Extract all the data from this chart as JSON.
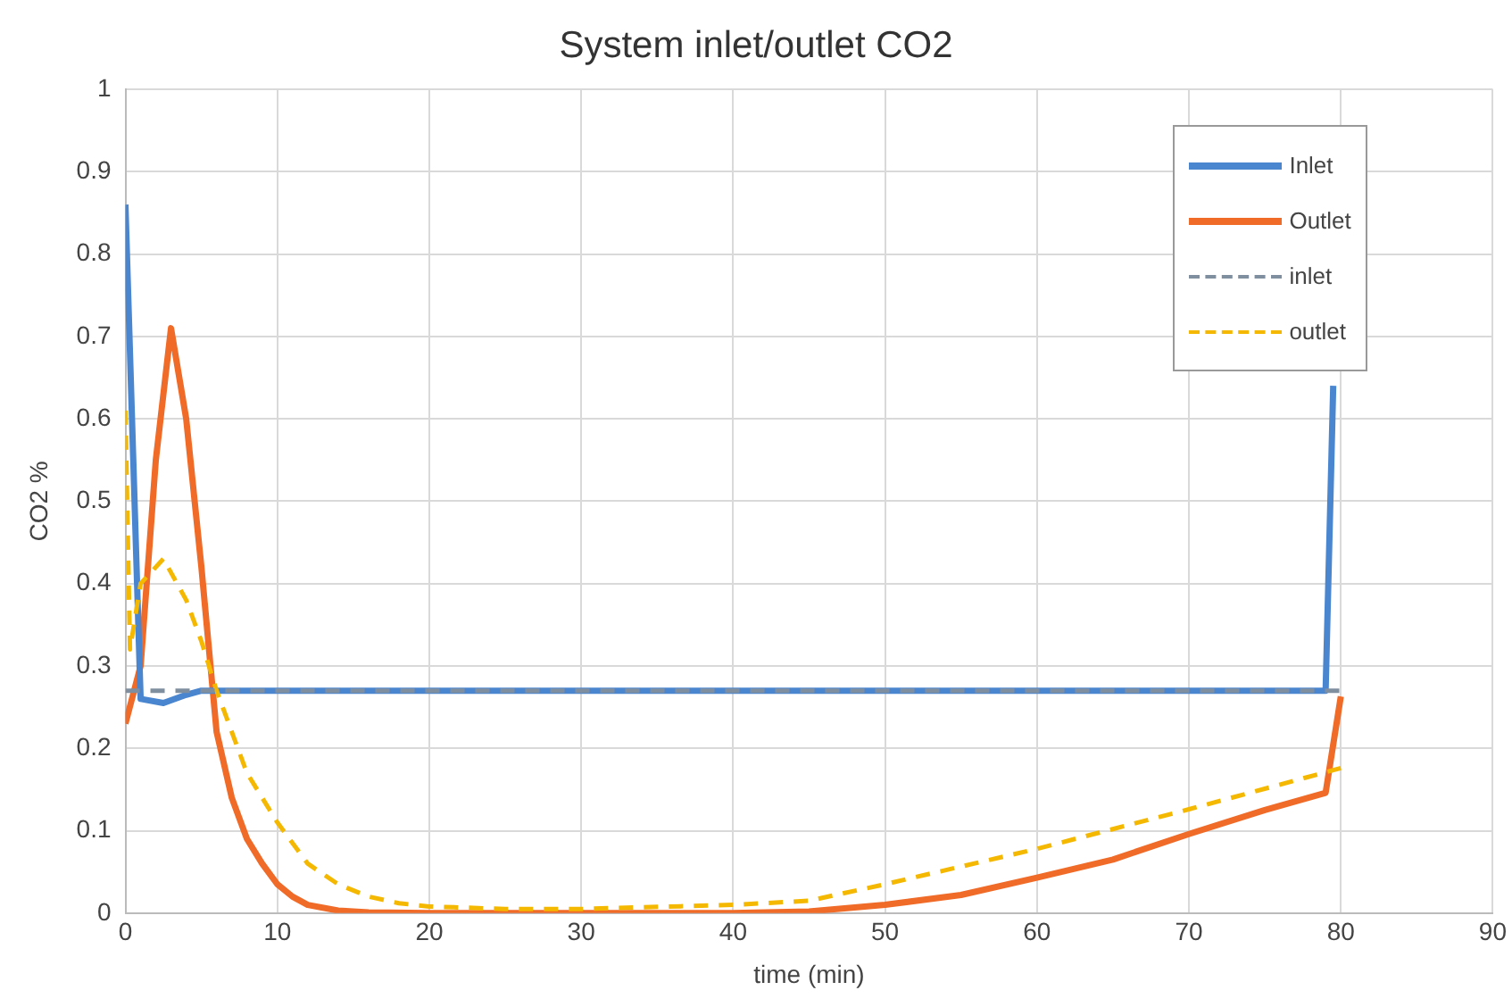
{
  "chart_data": {
    "type": "line",
    "title": "System inlet/outlet CO2",
    "xlabel": "time (min)",
    "ylabel": "CO2 %",
    "xlim": [
      0,
      90
    ],
    "xticks": [
      0,
      10,
      20,
      30,
      40,
      50,
      60,
      70,
      80,
      90
    ],
    "ylim": [
      0,
      1
    ],
    "yticks": [
      0,
      0.1,
      0.2,
      0.3,
      0.4,
      0.5,
      0.6,
      0.7,
      0.8,
      0.9,
      1
    ],
    "grid": true,
    "legend": "top right",
    "marker": "none",
    "series": [
      {
        "name": "Inlet",
        "color": "#4a86d0",
        "line_style": "solid",
        "x": [
          0,
          1,
          2.5,
          4,
          5,
          10,
          40,
          79,
          79.5
        ],
        "values": [
          0.86,
          0.26,
          0.255,
          0.265,
          0.27,
          0.27,
          0.27,
          0.27,
          0.64
        ]
      },
      {
        "name": "Outlet",
        "color": "#f06a28",
        "line_style": "solid",
        "x": [
          0,
          1,
          2,
          3,
          4,
          5,
          6,
          7,
          8,
          9,
          10,
          11,
          12,
          14,
          16,
          20,
          30,
          40,
          45,
          50,
          55,
          60,
          65,
          70,
          75,
          79,
          80
        ],
        "values": [
          0.23,
          0.3,
          0.55,
          0.71,
          0.6,
          0.42,
          0.22,
          0.14,
          0.09,
          0.06,
          0.035,
          0.02,
          0.01,
          0.003,
          0.001,
          0,
          0,
          0,
          0.002,
          0.01,
          0.022,
          0.043,
          0.065,
          0.096,
          0.125,
          0.146,
          0.263
        ]
      },
      {
        "name": "inlet",
        "color": "#7f8fa0",
        "line_style": "dashed",
        "x": [
          0,
          80
        ],
        "values": [
          0.27,
          0.27
        ]
      },
      {
        "name": "outlet",
        "color": "#f5b800",
        "line_style": "dashed",
        "x": [
          0,
          0.3,
          1,
          2.5,
          4,
          5,
          6,
          7,
          8,
          10,
          12,
          14,
          16,
          18,
          20,
          25,
          30,
          40,
          45,
          50,
          60,
          70,
          80
        ],
        "values": [
          0.61,
          0.32,
          0.4,
          0.43,
          0.38,
          0.33,
          0.27,
          0.22,
          0.17,
          0.11,
          0.06,
          0.035,
          0.02,
          0.012,
          0.008,
          0.005,
          0.005,
          0.01,
          0.015,
          0.035,
          0.078,
          0.126,
          0.176
        ]
      }
    ]
  }
}
